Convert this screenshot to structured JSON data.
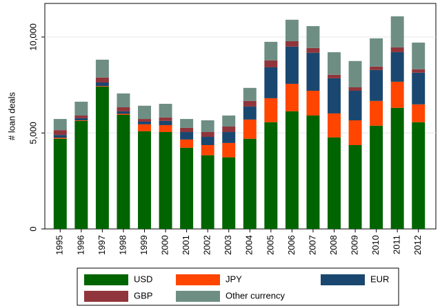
{
  "chart_data": {
    "type": "stacked_bar",
    "y_label": "# loan deals",
    "categories": [
      "1995",
      "1996",
      "1997",
      "1998",
      "1999",
      "2000",
      "2001",
      "2002",
      "2003",
      "2004",
      "2005",
      "2006",
      "2007",
      "2008",
      "2009",
      "2010",
      "2011",
      "2012"
    ],
    "series": [
      {
        "name": "USD",
        "color": "#006400",
        "values": [
          4700,
          5630,
          7420,
          5950,
          5090,
          5050,
          4230,
          3840,
          3730,
          4700,
          5560,
          6130,
          5910,
          4770,
          4370,
          5380,
          6310,
          5560
        ]
      },
      {
        "name": "JPY",
        "color": "#ff4500",
        "values": [
          50,
          30,
          30,
          50,
          360,
          360,
          430,
          530,
          750,
          1000,
          1250,
          1430,
          1290,
          1250,
          1290,
          1290,
          1360,
          930
        ]
      },
      {
        "name": "EUR",
        "color": "#1a476f",
        "values": [
          150,
          110,
          180,
          130,
          140,
          220,
          390,
          430,
          570,
          680,
          1610,
          1940,
          1980,
          1830,
          1540,
          1610,
          1540,
          1650
        ]
      },
      {
        "name": "GBP",
        "color": "#90353b",
        "values": [
          250,
          140,
          260,
          210,
          140,
          180,
          220,
          250,
          290,
          290,
          360,
          280,
          250,
          180,
          180,
          180,
          250,
          180
        ]
      },
      {
        "name": "Other currency",
        "color": "#6e8e84",
        "values": [
          580,
          720,
          930,
          720,
          690,
          710,
          460,
          610,
          570,
          680,
          970,
          1120,
          1140,
          1180,
          1370,
          1470,
          1620,
          1390
        ]
      }
    ],
    "ylim": [
      0,
      11750
    ],
    "yticks": [
      0,
      {
        "value": 5000,
        "label": "5,000"
      },
      {
        "value": 10000,
        "label": "10,000"
      }
    ],
    "grid": true
  }
}
